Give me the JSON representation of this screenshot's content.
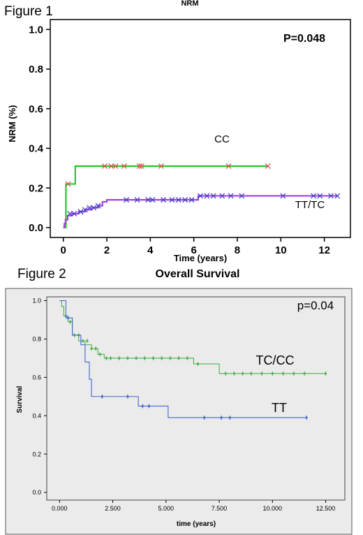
{
  "figure1": {
    "label": "Figure 1",
    "title": "NRM",
    "p_value": "P=0.048",
    "chart_data": {
      "type": "line",
      "step": true,
      "title": "NRM",
      "xlabel": "Time (years)",
      "ylabel": "NRM (%)",
      "xlim": [
        -0.6,
        13.2
      ],
      "ylim": [
        -0.05,
        1.05
      ],
      "xticks": [
        0,
        2,
        4,
        6,
        8,
        10,
        12
      ],
      "yticks": [
        0.0,
        0.2,
        0.4,
        0.6,
        0.8,
        1.0
      ],
      "xtick_labels": [
        "0",
        "2",
        "4",
        "6",
        "8",
        "10",
        "12"
      ],
      "ytick_labels": [
        "0.0",
        "0.2",
        "0.4",
        "0.6",
        "0.8",
        "1.0"
      ],
      "grid": false,
      "series": [
        {
          "name": "CC",
          "color": "#22cc22",
          "censor_color": "#e05050",
          "steps": [
            [
              0,
              0
            ],
            [
              0.12,
              0.22
            ],
            [
              0.5,
              0.22
            ],
            [
              0.55,
              0.31
            ],
            [
              9.4,
              0.31
            ]
          ],
          "censored_x": [
            0.22,
            1.9,
            2.2,
            2.4,
            2.8,
            3.5,
            3.6,
            4.5,
            7.6,
            9.4
          ],
          "censored_y": [
            0.22,
            0.31,
            0.31,
            0.31,
            0.31,
            0.31,
            0.31,
            0.31,
            0.31,
            0.31
          ]
        },
        {
          "name": "TT/TC",
          "color": "#a040e0",
          "censor_color": "#4040c0",
          "steps": [
            [
              0,
              0
            ],
            [
              0.05,
              0.02
            ],
            [
              0.1,
              0.04
            ],
            [
              0.2,
              0.06
            ],
            [
              0.4,
              0.07
            ],
            [
              0.7,
              0.08
            ],
            [
              1.0,
              0.09
            ],
            [
              1.3,
              0.1
            ],
            [
              1.6,
              0.11
            ],
            [
              1.8,
              0.13
            ],
            [
              2.0,
              0.14
            ],
            [
              6.1,
              0.14
            ],
            [
              6.2,
              0.16
            ],
            [
              12.6,
              0.16
            ]
          ],
          "censored_x": [
            0.3,
            0.5,
            0.8,
            1.0,
            1.2,
            1.4,
            1.6,
            2.9,
            3.4,
            3.9,
            4.1,
            4.6,
            5.0,
            5.3,
            5.6,
            5.9,
            6.3,
            6.6,
            6.9,
            7.3,
            7.7,
            8.2,
            10.1,
            11.5,
            11.8,
            12.3,
            12.6
          ],
          "censored_y": [
            0.07,
            0.07,
            0.08,
            0.09,
            0.1,
            0.1,
            0.11,
            0.14,
            0.14,
            0.14,
            0.14,
            0.14,
            0.14,
            0.14,
            0.14,
            0.14,
            0.16,
            0.16,
            0.16,
            0.16,
            0.16,
            0.16,
            0.16,
            0.16,
            0.16,
            0.16,
            0.16
          ]
        }
      ]
    }
  },
  "figure2": {
    "label": "Figure 2",
    "title": "Overall Survival",
    "p_value": "p=0.04",
    "chart_data": {
      "type": "line",
      "step": true,
      "title": "Overall Survival",
      "xlabel": "time (years)",
      "ylabel": "Survival",
      "xlim": [
        -0.6,
        13.4
      ],
      "ylim": [
        -0.04,
        1.02
      ],
      "xticks": [
        0,
        2.5,
        5,
        7.5,
        10,
        12.5
      ],
      "yticks": [
        0.0,
        0.2,
        0.4,
        0.6,
        0.8,
        1.0
      ],
      "xtick_labels": [
        "0.000",
        "2.500",
        "5.000",
        "7.500",
        "10.000",
        "12.500"
      ],
      "ytick_labels": [
        "0.0",
        "0.2",
        "0.4",
        "0.6",
        "0.8",
        "1.0"
      ],
      "grid": false,
      "background": "#ebebeb",
      "series": [
        {
          "name": "TC/CC",
          "color": "#4caf50",
          "steps": [
            [
              0,
              1.0
            ],
            [
              0.1,
              0.97
            ],
            [
              0.2,
              0.92
            ],
            [
              0.4,
              0.89
            ],
            [
              0.6,
              0.82
            ],
            [
              0.9,
              0.79
            ],
            [
              1.2,
              0.77
            ],
            [
              1.5,
              0.75
            ],
            [
              1.8,
              0.72
            ],
            [
              2.1,
              0.7
            ],
            [
              6.2,
              0.7
            ],
            [
              6.3,
              0.67
            ],
            [
              7.4,
              0.67
            ],
            [
              7.5,
              0.62
            ],
            [
              12.5,
              0.62
            ]
          ],
          "censored_x": [
            0.3,
            0.5,
            0.7,
            0.9,
            1.1,
            1.3,
            1.5,
            1.7,
            1.9,
            2.2,
            2.4,
            2.8,
            3.2,
            3.6,
            4.0,
            4.4,
            4.8,
            5.2,
            5.6,
            6.0,
            6.5,
            7.8,
            8.2,
            8.6,
            9.0,
            9.5,
            10.0,
            10.5,
            11.0,
            11.5,
            12.5
          ],
          "censored_y": [
            0.92,
            0.89,
            0.82,
            0.82,
            0.79,
            0.79,
            0.75,
            0.75,
            0.72,
            0.7,
            0.7,
            0.7,
            0.7,
            0.7,
            0.7,
            0.7,
            0.7,
            0.7,
            0.7,
            0.7,
            0.67,
            0.62,
            0.62,
            0.62,
            0.62,
            0.62,
            0.62,
            0.62,
            0.62,
            0.62,
            0.62
          ]
        },
        {
          "name": "TT",
          "color": "#4466cc",
          "steps": [
            [
              0,
              1.0
            ],
            [
              0.2,
              1.0
            ],
            [
              0.3,
              0.91
            ],
            [
              0.6,
              0.82
            ],
            [
              1.0,
              0.77
            ],
            [
              1.2,
              0.68
            ],
            [
              1.4,
              0.59
            ],
            [
              1.5,
              0.5
            ],
            [
              3.6,
              0.5
            ],
            [
              3.7,
              0.45
            ],
            [
              5.0,
              0.45
            ],
            [
              5.1,
              0.39
            ],
            [
              11.6,
              0.39
            ]
          ],
          "censored_x": [
            0.4,
            2.0,
            3.2,
            3.9,
            4.2,
            6.8,
            7.6,
            8.0,
            11.6
          ],
          "censored_y": [
            0.91,
            0.5,
            0.5,
            0.45,
            0.45,
            0.39,
            0.39,
            0.39,
            0.39
          ]
        }
      ]
    }
  }
}
